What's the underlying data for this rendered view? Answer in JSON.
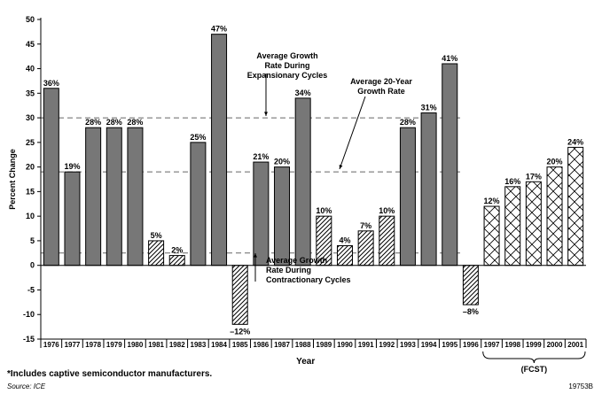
{
  "chart_data": {
    "type": "bar",
    "xlabel": "Year",
    "ylabel": "Percent Change",
    "ylim": [
      -15,
      50
    ],
    "yticks": [
      -15,
      -10,
      -5,
      0,
      5,
      10,
      15,
      20,
      25,
      30,
      35,
      40,
      45,
      50
    ],
    "grid": false,
    "categories": [
      "1976",
      "1977",
      "1978",
      "1979",
      "1980",
      "1981",
      "1982",
      "1983",
      "1984",
      "1985",
      "1986",
      "1987",
      "1988",
      "1989",
      "1990",
      "1991",
      "1992",
      "1993",
      "1994",
      "1995",
      "1996",
      "1997",
      "1998",
      "1999",
      "2000",
      "2001"
    ],
    "values": [
      36,
      19,
      28,
      28,
      28,
      5,
      2,
      25,
      47,
      -12,
      21,
      20,
      34,
      10,
      4,
      7,
      10,
      28,
      31,
      41,
      -8,
      12,
      16,
      17,
      20,
      24
    ],
    "data_labels": [
      "36%",
      "19%",
      "28%",
      "28%",
      "28%",
      "5%",
      "2%",
      "25%",
      "47%",
      "–12%",
      "21%",
      "20%",
      "34%",
      "10%",
      "4%",
      "7%",
      "10%",
      "28%",
      "31%",
      "41%",
      "–8%",
      "12%",
      "16%",
      "17%",
      "20%",
      "24%"
    ],
    "bar_styles": [
      "solid",
      "solid",
      "solid",
      "solid",
      "solid",
      "hatch",
      "hatch",
      "solid",
      "solid",
      "hatch",
      "solid",
      "solid",
      "solid",
      "hatch",
      "hatch",
      "hatch",
      "hatch",
      "solid",
      "solid",
      "solid",
      "hatch",
      "cross",
      "cross",
      "cross",
      "cross",
      "cross"
    ],
    "reference_lines": [
      {
        "value": 30,
        "label": "Average Growth\nRate During\nExpansionary Cycles"
      },
      {
        "value": 19,
        "label": "Average 20-Year\nGrowth Rate"
      },
      {
        "value": 2.5,
        "label": "Average Growth\nRate During\nContractionary Cycles"
      }
    ],
    "forecast_label": "(FCST)",
    "colors": {
      "solid": "#777777",
      "edge": "#000000",
      "reference": "#666666"
    }
  },
  "footnote": "*Includes captive semiconductor manufacturers.",
  "source": "Source: ICE",
  "figure_id": "19753B"
}
